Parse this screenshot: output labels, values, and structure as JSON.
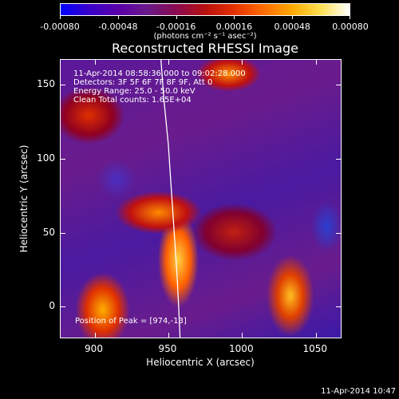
{
  "colorbar": {
    "ticks": [
      "-0.00080",
      "-0.00048",
      "-0.00016",
      "0.00016",
      "0.00048",
      "0.00080"
    ],
    "unit_label": "(photons cm⁻² s⁻¹ asec⁻²)"
  },
  "header": {
    "title": "Reconstructed RHESSI Image",
    "info": [
      "11-Apr-2014 08:58:36.000 to 09:02:28.000",
      "Detectors: 3F 5F 6F 7F 8F 9F, Att 0",
      "Energy Range: 25.0 - 50.0 keV",
      "Clean      Total counts: 1.65E+04"
    ],
    "peak_label": "Position of Peak = [974,-13]"
  },
  "timestamp": "11-Apr-2014 10:47",
  "chart_data": {
    "type": "heatmap",
    "title": "Reconstructed RHESSI Image",
    "xlabel": "Heliocentric X (arcsec)",
    "ylabel": "Heliocentric Y (arcsec)",
    "xlim": [
      877,
      1068
    ],
    "ylim": [
      -22,
      167
    ],
    "x_ticks": [
      900,
      950,
      1000,
      1050
    ],
    "y_ticks": [
      0,
      50,
      100,
      150
    ],
    "colorbar_range": [
      -0.0008,
      0.0008
    ],
    "limb_line": {
      "x": [
        945,
        947,
        950,
        952,
        954,
        956,
        957,
        958
      ],
      "y": [
        167,
        140,
        110,
        80,
        50,
        20,
        0,
        -22
      ]
    },
    "peak_position": [
      974,
      -13
    ]
  }
}
